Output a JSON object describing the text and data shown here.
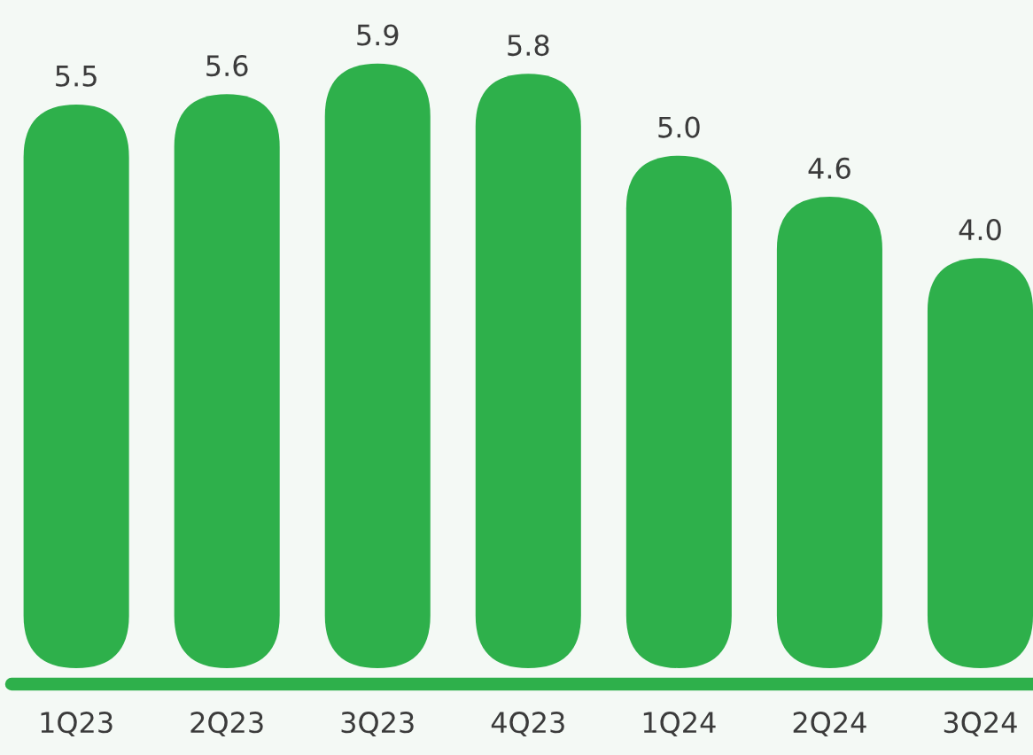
{
  "chart_data": {
    "type": "bar",
    "categories": [
      "1Q23",
      "2Q23",
      "3Q23",
      "4Q23",
      "1Q24",
      "2Q24",
      "3Q24"
    ],
    "values": [
      5.5,
      5.6,
      5.9,
      5.8,
      5.0,
      4.6,
      4.0
    ],
    "value_labels": [
      "5.5",
      "5.6",
      "5.9",
      "5.8",
      "5.0",
      "4.6",
      "4.0"
    ],
    "color": "#2eb04b",
    "tick_labels": "x"
  }
}
